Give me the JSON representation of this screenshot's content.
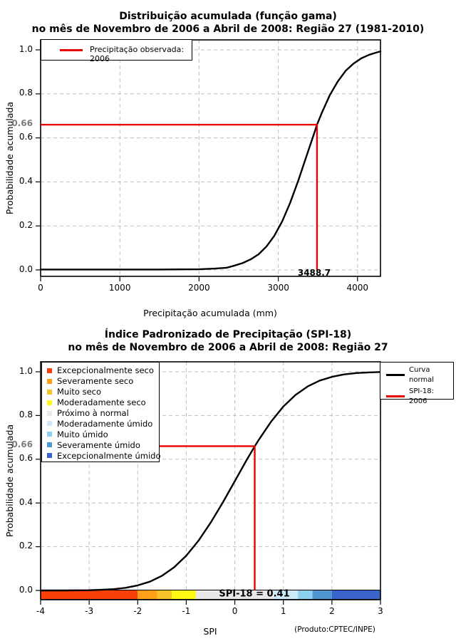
{
  "colors": {
    "red_line": "#E80000",
    "curve": "#000000",
    "grid": "#BFBFBF",
    "axis_dotted": "#555555",
    "gray_tick_label": "#7D7D7D"
  },
  "chart1": {
    "title_line1": "Distribuição acumulada (função gama)",
    "title_line2": "no mês de Novembro de 2006 a Abril de 2008: Região 27 (1981-2010)",
    "ylabel": "Probabilidade acumulada",
    "xlabel": "Precipitação acumulada (mm)",
    "legend_label": "Precipitação observada: 2006",
    "marker_prob_label": "0.66",
    "marker_value_label": "3488.7",
    "x_tick_labels": [
      "0",
      "1000",
      "2000",
      "3000",
      "4000"
    ],
    "y_tick_labels": [
      "0.0",
      "0.2",
      "0.4",
      "0.6",
      "0.8",
      "1.0"
    ]
  },
  "chart2": {
    "title_line1": "Índice Padronizado de Precipitação (SPI-18)",
    "title_line2": "no mês de Novembro de 2006 a Abril de 2008: Região 27",
    "ylabel": "Probabilidade acumulada",
    "xlabel": "SPI",
    "product_label": "(Produto:CPTEC/INPE)",
    "annotation": "SPI-18 = 0.41",
    "marker_prob_label": "0.66",
    "x_tick_labels": [
      "-4",
      "-3",
      "-2",
      "-1",
      "0",
      "1",
      "2",
      "3"
    ],
    "y_tick_labels": [
      "0.0",
      "0.2",
      "0.4",
      "0.6",
      "0.8",
      "1.0"
    ],
    "category_legend": [
      {
        "label": "Excepcionalmente seco",
        "color": "#FA4008"
      },
      {
        "label": "Severamente seco",
        "color": "#FFA018"
      },
      {
        "label": "Muito seco",
        "color": "#F5C328"
      },
      {
        "label": "Moderadamente seco",
        "color": "#FFF714"
      },
      {
        "label": "Próximo à normal",
        "color": "#E8E8E8"
      },
      {
        "label": "Moderadamente úmido",
        "color": "#CBE9F7"
      },
      {
        "label": "Muito úmido",
        "color": "#8CCFEE"
      },
      {
        "label": "Severamente úmido",
        "color": "#4D96CF"
      },
      {
        "label": "Excepcionalmente úmido",
        "color": "#3B63CE"
      }
    ],
    "curve_legend": [
      {
        "lines": [
          "Curva",
          "normal"
        ],
        "color": "#000000"
      },
      {
        "lines": [
          "SPI-18: 2006"
        ],
        "color": "#E80000"
      }
    ]
  },
  "chart_data": [
    {
      "type": "line",
      "title": "Distribuição acumulada (função gama) no mês de Novembro de 2006 a Abril de 2008: Região 27 (1981-2010)",
      "xlabel": "Precipitação acumulada (mm)",
      "ylabel": "Probabilidade acumulada",
      "xlim": [
        0,
        4290
      ],
      "ylim": [
        0,
        1
      ],
      "grid": true,
      "legend_position": "top-left",
      "x_ticks": [
        0,
        1000,
        2000,
        3000,
        4000
      ],
      "y_ticks": [
        0,
        0.2,
        0.4,
        0.6,
        0.8,
        1.0
      ],
      "series": [
        {
          "name": "Distribuição acumulada (função gama)",
          "color": "#000000",
          "x": [
            0,
            800,
            1500,
            2000,
            2200,
            2350,
            2450,
            2550,
            2650,
            2750,
            2850,
            2950,
            3050,
            3150,
            3250,
            3350,
            3450,
            3488.7,
            3550,
            3650,
            3750,
            3850,
            3950,
            4050,
            4150,
            4250,
            4290
          ],
          "y": [
            0.002,
            0.002,
            0.002,
            0.003,
            0.006,
            0.01,
            0.02,
            0.031,
            0.048,
            0.071,
            0.106,
            0.155,
            0.221,
            0.305,
            0.404,
            0.511,
            0.617,
            0.66,
            0.714,
            0.794,
            0.856,
            0.905,
            0.938,
            0.962,
            0.978,
            0.989,
            0.993
          ]
        }
      ],
      "marker": {
        "name": "Precipitação observada: 2006",
        "color": "#E80000",
        "x": 3488.7,
        "y": 0.66
      }
    },
    {
      "type": "line",
      "title": "Índice Padronizado de Precipitação (SPI-18) no mês de Novembro de 2006 a Abril de 2008: Região 27",
      "xlabel": "SPI",
      "ylabel": "Probabilidade acumulada",
      "xlim": [
        -4,
        3
      ],
      "ylim": [
        0,
        1
      ],
      "grid": true,
      "x_ticks": [
        -4,
        -3,
        -2,
        -1,
        0,
        1,
        2,
        3
      ],
      "y_ticks": [
        0,
        0.2,
        0.4,
        0.6,
        0.8,
        1.0
      ],
      "series": [
        {
          "name": "Curva normal",
          "color": "#000000",
          "x": [
            -4,
            -3.5,
            -3,
            -2.75,
            -2.5,
            -2.25,
            -2,
            -1.75,
            -1.5,
            -1.25,
            -1,
            -0.75,
            -0.5,
            -0.25,
            0,
            0.25,
            0.41,
            0.5,
            0.75,
            1,
            1.25,
            1.5,
            1.75,
            2,
            2.25,
            2.5,
            2.75,
            3
          ],
          "y": [
            0.0,
            0.0,
            0.001,
            0.003,
            0.006,
            0.012,
            0.023,
            0.04,
            0.067,
            0.106,
            0.159,
            0.227,
            0.309,
            0.401,
            0.5,
            0.599,
            0.659,
            0.691,
            0.773,
            0.841,
            0.894,
            0.933,
            0.96,
            0.977,
            0.988,
            0.994,
            0.997,
            0.999
          ]
        }
      ],
      "marker": {
        "name": "SPI-18: 2006",
        "color": "#E80000",
        "x": 0.41,
        "y": 0.66
      },
      "colorbar": {
        "boundaries": [
          -4,
          -2,
          -1.6,
          -1.3,
          -0.8,
          0.8,
          1.3,
          1.6,
          2,
          3
        ],
        "colors": [
          "#FA4008",
          "#FFA018",
          "#F5C328",
          "#FFF714",
          "#E8E8E8",
          "#CBE9F7",
          "#8CCFEE",
          "#4D96CF",
          "#3B63CE"
        ],
        "labels": [
          "Excepcionalmente seco",
          "Severamente seco",
          "Muito seco",
          "Moderadamente seco",
          "Próximo à normal",
          "Moderadamente úmido",
          "Muito úmido",
          "Severamente úmido",
          "Excepcionalmente úmido"
        ]
      }
    }
  ]
}
